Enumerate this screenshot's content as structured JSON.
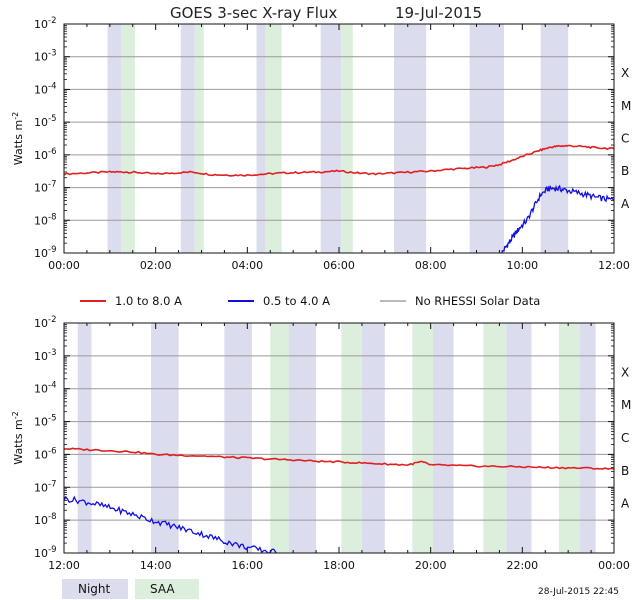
{
  "title": "GOES 3-sec X-ray Flux",
  "date": "19-Jul-2015",
  "timestamp": "28-Jul-2015 22:45",
  "colors": {
    "long": "#e02020",
    "short": "#1010e0",
    "norhessi": "#909090",
    "night": "#dcdcef",
    "saa": "#dcefdc",
    "grid": "#9a9a9a"
  },
  "legend": {
    "long_label": "1.0 to 8.0 A",
    "short_label": "0.5 to 4.0 A",
    "norhessi_label": "No RHESSI Solar Data",
    "night_label": "Night",
    "saa_label": "SAA"
  },
  "chart_data": [
    {
      "type": "line",
      "panel": "top",
      "ylabel": "Watts m-2",
      "yscale": "log",
      "ylim": [
        1e-09,
        0.01
      ],
      "xlim": [
        0,
        12
      ],
      "y_ticks": [
        "10-9",
        "10-8",
        "10-7",
        "10-6",
        "10-5",
        "10-4",
        "10-3",
        "10-2"
      ],
      "x_ticks": [
        "00:00",
        "02:00",
        "04:00",
        "06:00",
        "08:00",
        "10:00",
        "12:00"
      ],
      "flare_classes": [
        "A",
        "B",
        "C",
        "M",
        "X"
      ],
      "night_bands": [
        [
          0.95,
          1.25
        ],
        [
          2.55,
          2.85
        ],
        [
          4.2,
          4.4
        ],
        [
          5.6,
          6.05
        ],
        [
          7.2,
          7.9
        ],
        [
          8.85,
          9.6
        ],
        [
          10.4,
          11.0
        ]
      ],
      "saa_bands": [
        [
          1.25,
          1.55
        ],
        [
          2.85,
          3.05
        ],
        [
          4.4,
          4.75
        ],
        [
          6.05,
          6.3
        ]
      ],
      "series": [
        {
          "name": "1.0 to 8.0 A",
          "x": [
            0,
            0.5,
            1.0,
            1.3,
            1.6,
            2.0,
            2.4,
            2.8,
            3.2,
            3.6,
            4.0,
            4.4,
            4.8,
            5.2,
            5.6,
            6.0,
            6.4,
            6.8,
            7.2,
            7.6,
            8.0,
            8.4,
            8.8,
            9.2,
            9.5,
            9.8,
            10.1,
            10.4,
            10.6,
            10.8,
            11.0,
            11.3,
            11.6,
            12.0
          ],
          "y": [
            2.6e-07,
            2.8e-07,
            3e-07,
            3e-07,
            2.9e-07,
            2.6e-07,
            2.8e-07,
            3e-07,
            2.5e-07,
            2.4e-07,
            2.4e-07,
            2.6e-07,
            2.8e-07,
            2.9e-07,
            3e-07,
            3.2e-07,
            2.8e-07,
            2.6e-07,
            2.8e-07,
            3e-07,
            3.2e-07,
            3.6e-07,
            3.9e-07,
            4.2e-07,
            5e-07,
            7e-07,
            1e-06,
            1.4e-06,
            1.7e-06,
            1.85e-06,
            1.9e-06,
            1.8e-06,
            1.65e-06,
            1.55e-06
          ]
        },
        {
          "name": "0.5 to 4.0 A",
          "x": [
            9.55,
            9.65,
            9.75,
            9.85,
            9.95,
            10.1,
            10.25,
            10.4,
            10.55,
            10.7,
            10.85,
            11.0,
            11.2,
            11.4,
            11.6,
            11.8,
            12.0
          ],
          "y": [
            1e-09,
            1.6e-09,
            2.5e-09,
            4e-09,
            6e-09,
            1e-08,
            2.5e-08,
            6e-08,
            9e-08,
            9.5e-08,
            9e-08,
            8e-08,
            7e-08,
            6e-08,
            5e-08,
            4.5e-08,
            4.2e-08
          ]
        }
      ]
    },
    {
      "type": "line",
      "panel": "bottom",
      "ylabel": "Watts m-2",
      "yscale": "log",
      "ylim": [
        1e-09,
        0.01
      ],
      "xlim": [
        12,
        24
      ],
      "y_ticks": [
        "10-9",
        "10-8",
        "10-7",
        "10-6",
        "10-5",
        "10-4",
        "10-3",
        "10-2"
      ],
      "x_ticks": [
        "12:00",
        "14:00",
        "16:00",
        "18:00",
        "20:00",
        "22:00",
        "00:00"
      ],
      "flare_classes": [
        "A",
        "B",
        "C",
        "M",
        "X"
      ],
      "night_bands": [
        [
          12.3,
          12.6
        ],
        [
          13.9,
          14.5
        ],
        [
          15.5,
          16.1
        ],
        [
          16.9,
          17.5
        ],
        [
          18.5,
          19.0
        ],
        [
          20.05,
          20.5
        ],
        [
          21.65,
          22.2
        ],
        [
          23.25,
          23.6
        ]
      ],
      "saa_bands": [
        [
          16.5,
          16.9
        ],
        [
          18.05,
          18.5
        ],
        [
          19.6,
          20.05
        ],
        [
          21.15,
          21.65
        ],
        [
          22.8,
          23.25
        ]
      ],
      "series": [
        {
          "name": "1.0 to 8.0 A",
          "x": [
            12.0,
            12.5,
            13.0,
            13.5,
            14.0,
            14.5,
            15.0,
            15.5,
            16.0,
            16.5,
            17.0,
            17.5,
            18.0,
            18.5,
            19.0,
            19.5,
            19.8,
            20.0,
            20.5,
            21.0,
            21.5,
            22.0,
            22.5,
            23.0,
            23.5,
            24.0
          ],
          "y": [
            1.5e-06,
            1.4e-06,
            1.3e-06,
            1.2e-06,
            1e-06,
            9.5e-07,
            9e-07,
            8.3e-07,
            7.8e-07,
            7.2e-07,
            6.8e-07,
            6.2e-07,
            5.9e-07,
            5.5e-07,
            5.1e-07,
            4.8e-07,
            6e-07,
            4.8e-07,
            4.6e-07,
            4.4e-07,
            4.3e-07,
            4.2e-07,
            4e-07,
            3.9e-07,
            3.8e-07,
            3.6e-07
          ]
        },
        {
          "name": "0.5 to 4.0 A",
          "x": [
            12.0,
            12.3,
            12.6,
            12.9,
            13.2,
            13.5,
            13.8,
            14.1,
            14.4,
            14.7,
            15.0,
            15.3,
            15.6,
            15.9,
            16.2,
            16.5,
            16.8
          ],
          "y": [
            4.5e-08,
            4e-08,
            3.3e-08,
            2.6e-08,
            2e-08,
            1.5e-08,
            1.1e-08,
            8.5e-09,
            6.5e-09,
            5e-09,
            3.8e-09,
            2.8e-09,
            2.1e-09,
            1.6e-09,
            1.3e-09,
            1.1e-09,
            1e-09
          ]
        }
      ]
    }
  ]
}
